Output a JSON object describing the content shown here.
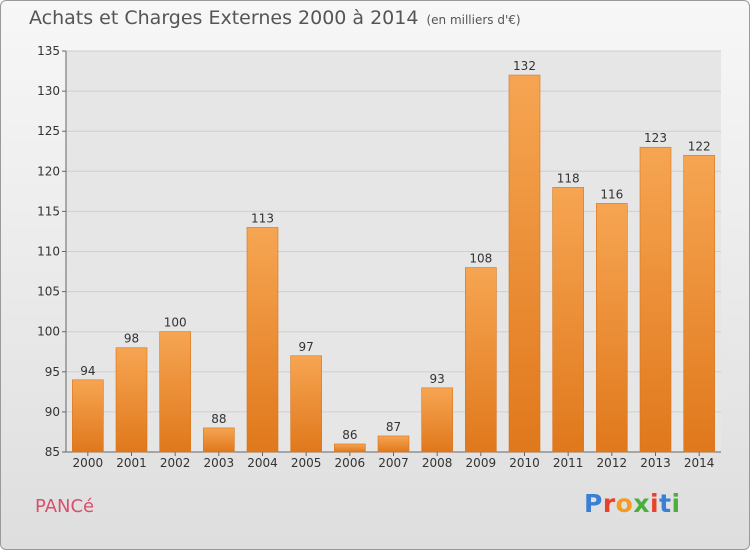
{
  "header": {
    "title": "Achats et Charges Externes 2000 à 2014",
    "subtitle": "(en milliers d'€)"
  },
  "footer": {
    "commune": "PANCé",
    "brand": "Proxiti",
    "brand_colors": [
      "#3a7fd5",
      "#e8412c",
      "#f39c1f",
      "#4cae3b",
      "#e8412c",
      "#3a7fd5",
      "#4cae3b"
    ]
  },
  "chart_data": {
    "type": "bar",
    "title": "Achats et Charges Externes 2000 à 2014",
    "subtitle": "(en milliers d'€)",
    "categories": [
      "2000",
      "2001",
      "2002",
      "2003",
      "2004",
      "2005",
      "2006",
      "2007",
      "2008",
      "2009",
      "2010",
      "2011",
      "2012",
      "2013",
      "2014"
    ],
    "values": [
      94,
      98,
      100,
      88,
      113,
      97,
      86,
      87,
      93,
      108,
      132,
      118,
      116,
      123,
      122
    ],
    "ylim": [
      85,
      135
    ],
    "yticks": [
      85,
      90,
      95,
      100,
      105,
      110,
      115,
      120,
      125,
      130,
      135
    ],
    "grid": true,
    "data_labels": true,
    "colors": {
      "bar_top": "#f6a552",
      "bar_bottom": "#e0781c",
      "bar_edge": "#d8741c"
    }
  }
}
